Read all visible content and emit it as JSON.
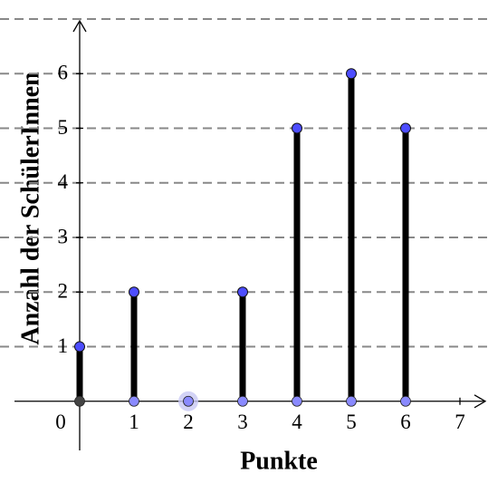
{
  "chart_data": {
    "type": "stem",
    "x_label": "Punkte",
    "y_label": "Anzahl der SchülerInnen",
    "x": [
      0,
      1,
      2,
      3,
      4,
      5,
      6
    ],
    "values": [
      1,
      2,
      0,
      2,
      5,
      6,
      5
    ],
    "color": "#000000",
    "point_color": "#4d4dff",
    "xlim": [
      -1.2,
      7.5
    ],
    "ylim": [
      -0.9,
      7
    ],
    "xticks": [
      0,
      1,
      2,
      3,
      4,
      5,
      6,
      7
    ],
    "yticks": [
      1,
      2,
      3,
      4,
      5,
      6
    ],
    "grid": true
  }
}
